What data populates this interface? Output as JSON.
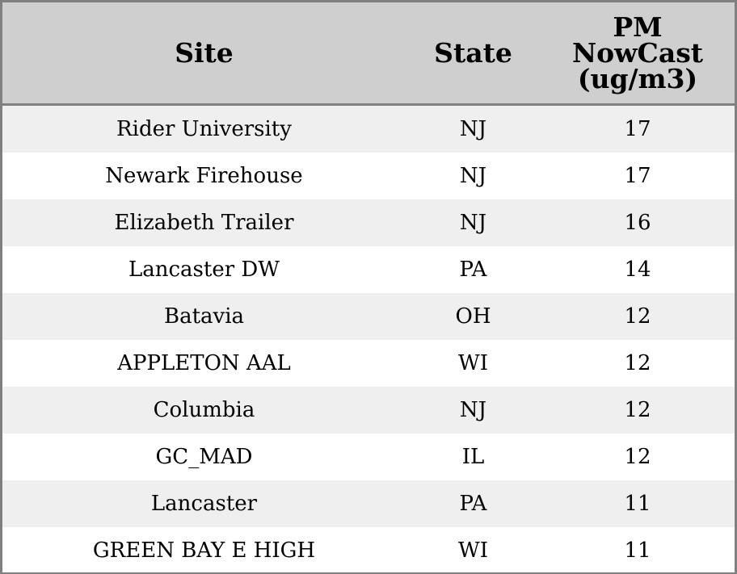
{
  "chart_data": {
    "type": "table",
    "columns": [
      "Site",
      "State",
      "PM NowCast (ug/m3)"
    ],
    "rows": [
      [
        "Rider University",
        "NJ",
        "17"
      ],
      [
        "Newark Firehouse",
        "NJ",
        "17"
      ],
      [
        "Elizabeth Trailer",
        "NJ",
        "16"
      ],
      [
        "Lancaster DW",
        "PA",
        "14"
      ],
      [
        "Batavia",
        "OH",
        "12"
      ],
      [
        "APPLETON AAL",
        "WI",
        "12"
      ],
      [
        "Columbia",
        "NJ",
        "12"
      ],
      [
        "GC_MAD",
        "IL",
        "12"
      ],
      [
        "Lancaster",
        "PA",
        "11"
      ],
      [
        "GREEN BAY E HIGH",
        "WI",
        "11"
      ]
    ],
    "colors": {
      "header_bg": "#cfcfcf",
      "stripe_bg": "#efefef",
      "border": "#808080"
    }
  }
}
